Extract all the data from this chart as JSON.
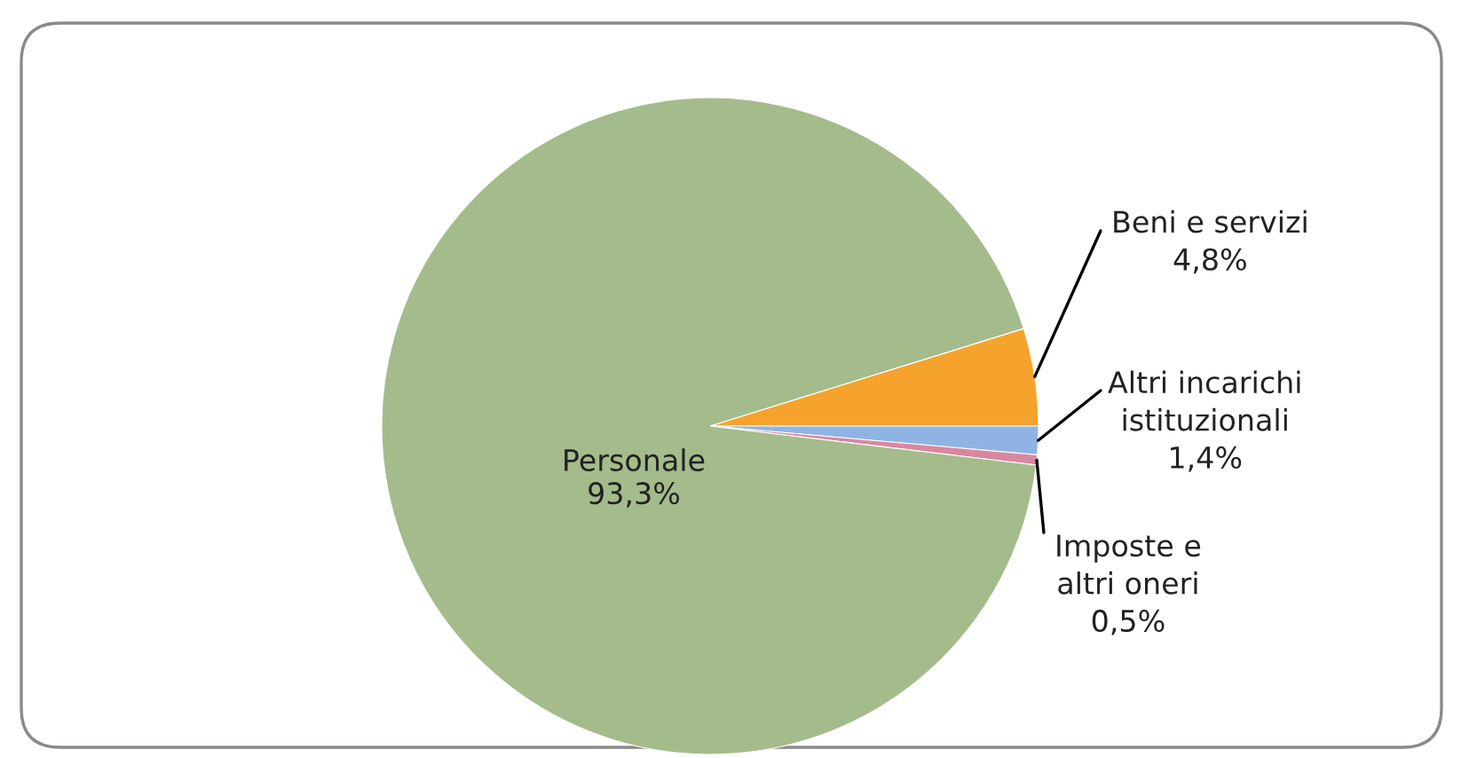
{
  "chart_data": {
    "type": "pie",
    "categories": [
      "Beni e servizi",
      "Altri incarichi istituzionali",
      "Imposte e altri oneri",
      "Personale"
    ],
    "values": [
      4.8,
      1.4,
      0.5,
      93.3
    ],
    "value_labels": [
      "4,8%",
      "1,4%",
      "0,5%",
      "93,3%"
    ],
    "colors": [
      "#f5a32c",
      "#8fb4e3",
      "#d9879f",
      "#a4bc8c"
    ],
    "legend": false
  }
}
